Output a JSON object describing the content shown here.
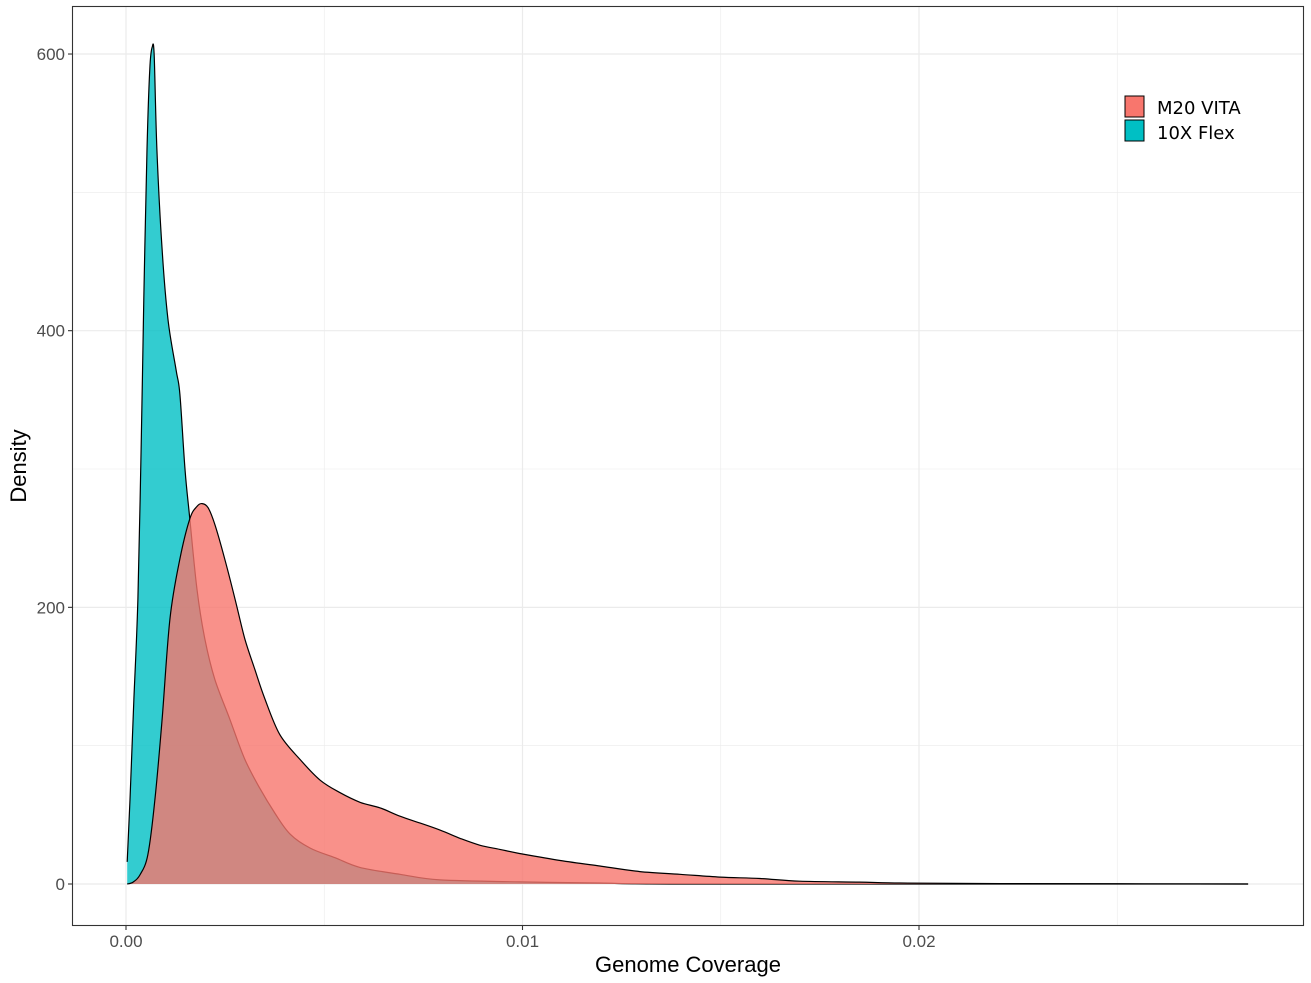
{
  "chart_data": {
    "type": "area",
    "subtype": "density",
    "title": "",
    "xlabel": "Genome Coverage",
    "ylabel": "Density",
    "xlim": [
      -0.0014,
      0.0285
    ],
    "ylim": [
      -30,
      635
    ],
    "x_ticks": [
      0.0,
      0.01,
      0.02
    ],
    "x_tick_labels": [
      "0.00",
      "0.01",
      "0.02"
    ],
    "y_ticks": [
      0,
      200,
      400,
      600
    ],
    "y_tick_labels": [
      "0",
      "200",
      "400",
      "600"
    ],
    "grid": true,
    "legend": {
      "position": "top-right-inside",
      "entries": [
        {
          "label": "M20 VITA",
          "color": "#F8766D"
        },
        {
          "label": "10X Flex",
          "color": "#00BFC4"
        }
      ]
    },
    "series": [
      {
        "name": "10X Flex",
        "color": "#00BFC4",
        "x": [
          3e-05,
          0.0001,
          0.0002,
          0.0003,
          0.00038,
          0.00045,
          0.00053,
          0.0006,
          0.00066,
          0.00071,
          0.00078,
          0.00091,
          0.00106,
          0.00126,
          0.00136,
          0.00149,
          0.00161,
          0.00179,
          0.00199,
          0.00224,
          0.00262,
          0.003,
          0.00338,
          0.00376,
          0.00414,
          0.00464,
          0.00527,
          0.0059,
          0.00691,
          0.00792,
          0.00994,
          0.01195,
          0.01448,
          0.0283
        ],
        "y": [
          16,
          61,
          134,
          206,
          314,
          423,
          531,
          589,
          605,
          599,
          531,
          459,
          408,
          372,
          354,
          299,
          264,
          213,
          177,
          148,
          119,
          90,
          69,
          51,
          36,
          26,
          19,
          12,
          7,
          3,
          1.5,
          0.7,
          0,
          0
        ]
      },
      {
        "name": "M20 VITA",
        "color": "#F8766D",
        "x": [
          3e-05,
          0.00018,
          0.00035,
          0.00055,
          0.00073,
          0.00091,
          0.00111,
          0.00136,
          0.00161,
          0.00179,
          0.00192,
          0.00207,
          0.00224,
          0.00249,
          0.00275,
          0.003,
          0.00325,
          0.0035,
          0.00388,
          0.00439,
          0.0049,
          0.0054,
          0.00591,
          0.00641,
          0.00691,
          0.00742,
          0.00792,
          0.00843,
          0.00893,
          0.00943,
          0.00994,
          0.01095,
          0.01195,
          0.01296,
          0.01397,
          0.01498,
          0.01599,
          0.01699,
          0.0185,
          0.01952,
          0.02204,
          0.0283
        ],
        "y": [
          0,
          1.4,
          6.5,
          21,
          61,
          119,
          192,
          235,
          264,
          273,
          275,
          272,
          260,
          235,
          206,
          177,
          155,
          134,
          108,
          90,
          75,
          66,
          59,
          55,
          49,
          44,
          39,
          33,
          28,
          25,
          22,
          17,
          13,
          9,
          7,
          5,
          4,
          2,
          1.4,
          0.7,
          0.3,
          0
        ]
      }
    ]
  }
}
